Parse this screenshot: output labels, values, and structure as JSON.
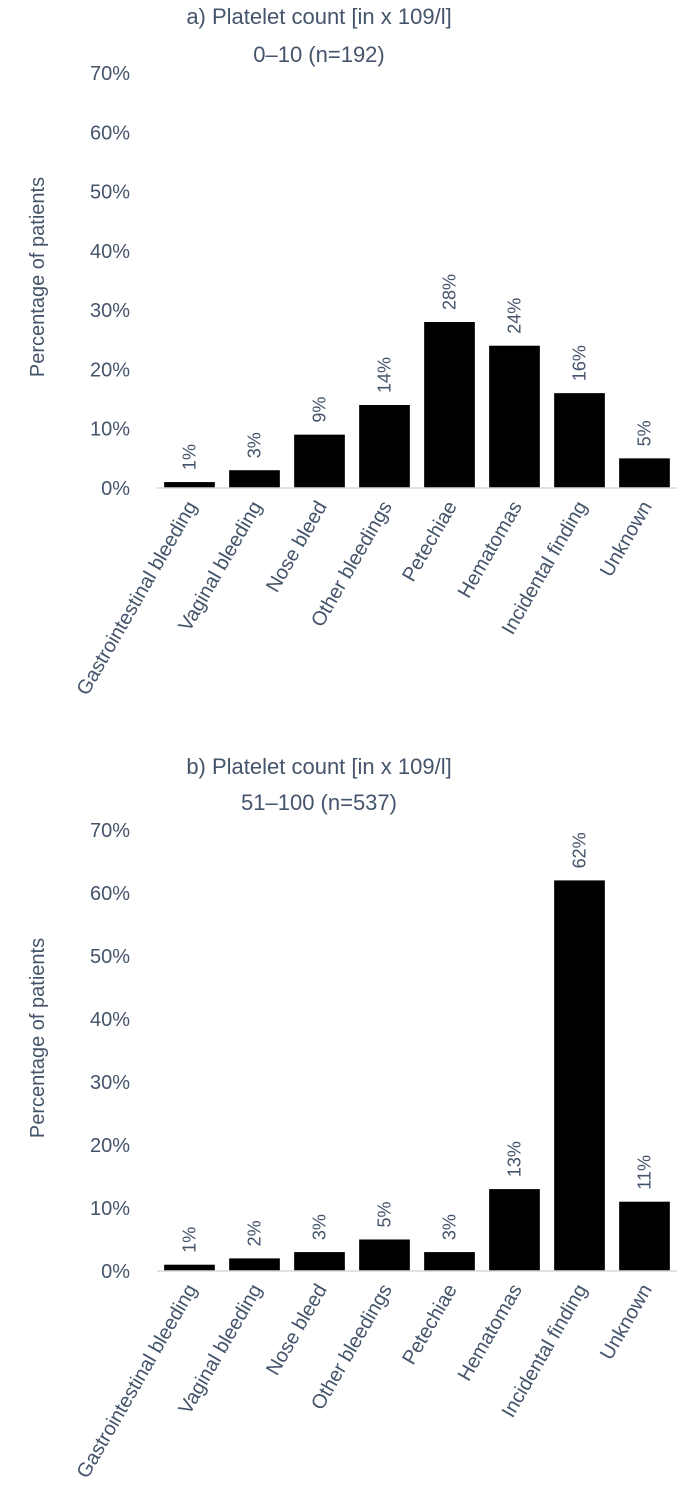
{
  "chart_data": [
    {
      "type": "bar",
      "title": "a) Platelet count [in x 109/l]",
      "subtitle": "0–10 (n=192)",
      "xlabel": "",
      "ylabel": "Percentage of patients",
      "categories": [
        "Gastrointestinal bleeding",
        "Vaginal bleeding",
        "Nose bleed",
        "Other bleedings",
        "Petechiae",
        "Hematomas",
        "Incidental finding",
        "Unknown"
      ],
      "values": [
        1,
        3,
        9,
        14,
        28,
        24,
        16,
        5
      ],
      "data_labels": [
        "1%",
        "3%",
        "9%",
        "14%",
        "28%",
        "24%",
        "16%",
        "5%"
      ],
      "ylim": [
        0,
        70
      ],
      "yticks": [
        0,
        10,
        20,
        30,
        40,
        50,
        60,
        70
      ],
      "ytick_labels": [
        "0%",
        "10%",
        "20%",
        "30%",
        "40%",
        "50%",
        "60%",
        "70%"
      ],
      "grid": false,
      "bar_color": "#000000",
      "text_color": "#44546a"
    },
    {
      "type": "bar",
      "title": "b) Platelet count [in x 109/l]",
      "subtitle": "51–100 (n=537)",
      "xlabel": "",
      "ylabel": "Percentage of patients",
      "categories": [
        "Gastrointestinal bleeding",
        "Vaginal bleeding",
        "Nose bleed",
        "Other bleedings",
        "Petechiae",
        "Hematomas",
        "Incidental finding",
        "Unknown"
      ],
      "values": [
        1,
        2,
        3,
        5,
        3,
        13,
        62,
        11
      ],
      "data_labels": [
        "1%",
        "2%",
        "3%",
        "5%",
        "3%",
        "13%",
        "62%",
        "11%"
      ],
      "ylim": [
        0,
        70
      ],
      "yticks": [
        0,
        10,
        20,
        30,
        40,
        50,
        60,
        70
      ],
      "ytick_labels": [
        "0%",
        "10%",
        "20%",
        "30%",
        "40%",
        "50%",
        "60%",
        "70%"
      ],
      "grid": false,
      "bar_color": "#000000",
      "text_color": "#44546a"
    }
  ]
}
